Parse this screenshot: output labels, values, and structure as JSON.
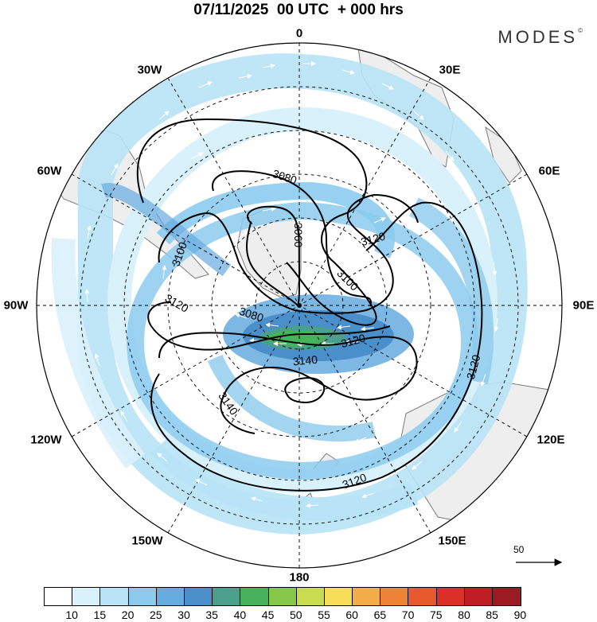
{
  "header": {
    "title": "07/11/2025  00 UTC  + 000 hrs",
    "brand": "MODES",
    "brand_mark": "©"
  },
  "map": {
    "projection": "south-polar-stereographic",
    "longitude_labels": [
      "0",
      "30E",
      "60E",
      "90E",
      "120E",
      "150E",
      "180",
      "150W",
      "120W",
      "90W",
      "60W",
      "30W"
    ],
    "contour_labels": [
      "3080",
      "3060",
      "3120",
      "3100",
      "3100",
      "3120",
      "3080",
      "3120",
      "3140",
      "3140",
      "3120",
      "3120"
    ],
    "reference_vector": {
      "label": "50"
    },
    "colors": {
      "land": "#eeeeee",
      "coast": "#7a7a7a",
      "contour": "#000000"
    }
  },
  "colorbar": {
    "ticks": [
      "10",
      "15",
      "20",
      "25",
      "30",
      "35",
      "40",
      "45",
      "50",
      "55",
      "60",
      "65",
      "70",
      "75",
      "80",
      "85",
      "90"
    ],
    "colors": [
      "#ffffff",
      "#d9f1fb",
      "#b8e3f6",
      "#8ccbee",
      "#66abe0",
      "#4a8fca",
      "#4aa08a",
      "#46b25a",
      "#88c849",
      "#c8dc52",
      "#f6dc58",
      "#f3ac48",
      "#ee8236",
      "#e75a2c",
      "#d93127",
      "#be1f25",
      "#9b1b20"
    ]
  }
}
